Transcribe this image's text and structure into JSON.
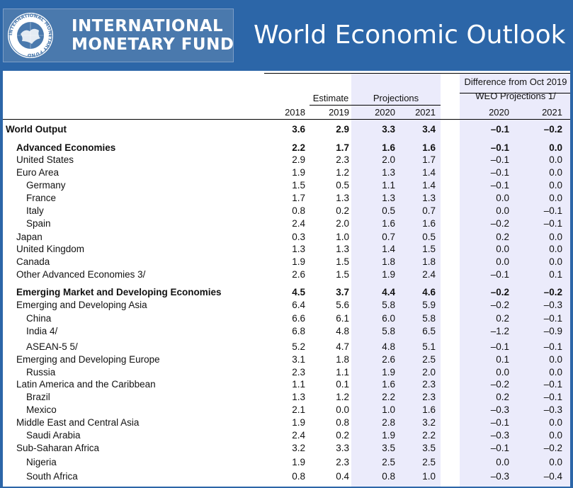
{
  "header": {
    "org_line1": "INTERNATIONAL",
    "org_line2": "MONETARY FUND",
    "title": "World Economic Outlook",
    "seal_text": "INTERNATIONAL MONETARY FUND"
  },
  "table": {
    "group_headers": {
      "estimate": "Estimate",
      "projections": "Projections",
      "difference_line1": "Difference from Oct 2019",
      "difference_line2": "WEO Projections 1/"
    },
    "columns": [
      "2018",
      "2019",
      "2020",
      "2021",
      "2020",
      "2021"
    ],
    "rows": [
      {
        "label": "World Output",
        "level": 0,
        "bold": true,
        "values": [
          "3.6",
          "2.9",
          "3.3",
          "3.4",
          "–0.1",
          "–0.2"
        ]
      },
      {
        "label": "Advanced Economies",
        "level": 1,
        "bold": true,
        "values": [
          "2.2",
          "1.7",
          "1.6",
          "1.6",
          "–0.1",
          "0.0"
        ]
      },
      {
        "label": "United States",
        "level": 1,
        "bold": false,
        "values": [
          "2.9",
          "2.3",
          "2.0",
          "1.7",
          "–0.1",
          "0.0"
        ]
      },
      {
        "label": "Euro Area",
        "level": 1,
        "bold": false,
        "values": [
          "1.9",
          "1.2",
          "1.3",
          "1.4",
          "–0.1",
          "0.0"
        ]
      },
      {
        "label": "Germany",
        "level": 2,
        "bold": false,
        "values": [
          "1.5",
          "0.5",
          "1.1",
          "1.4",
          "–0.1",
          "0.0"
        ]
      },
      {
        "label": "France",
        "level": 2,
        "bold": false,
        "values": [
          "1.7",
          "1.3",
          "1.3",
          "1.3",
          "0.0",
          "0.0"
        ]
      },
      {
        "label": "Italy",
        "level": 2,
        "bold": false,
        "values": [
          "0.8",
          "0.2",
          "0.5",
          "0.7",
          "0.0",
          "–0.1"
        ]
      },
      {
        "label": "Spain",
        "level": 2,
        "bold": false,
        "values": [
          "2.4",
          "2.0",
          "1.6",
          "1.6",
          "–0.2",
          "–0.1"
        ]
      },
      {
        "label": "Japan",
        "level": 1,
        "bold": false,
        "values": [
          "0.3",
          "1.0",
          "0.7",
          "0.5",
          "0.2",
          "0.0"
        ]
      },
      {
        "label": "United Kingdom",
        "level": 1,
        "bold": false,
        "values": [
          "1.3",
          "1.3",
          "1.4",
          "1.5",
          "0.0",
          "0.0"
        ]
      },
      {
        "label": "Canada",
        "level": 1,
        "bold": false,
        "values": [
          "1.9",
          "1.5",
          "1.8",
          "1.8",
          "0.0",
          "0.0"
        ]
      },
      {
        "label": "Other Advanced Economies 3/",
        "level": 1,
        "bold": false,
        "values": [
          "2.6",
          "1.5",
          "1.9",
          "2.4",
          "–0.1",
          "0.1"
        ]
      },
      {
        "label": "Emerging Market and Developing Economies",
        "level": 1,
        "bold": true,
        "values": [
          "4.5",
          "3.7",
          "4.4",
          "4.6",
          "–0.2",
          "–0.2"
        ]
      },
      {
        "label": "Emerging and Developing Asia",
        "level": 1,
        "bold": false,
        "values": [
          "6.4",
          "5.6",
          "5.8",
          "5.9",
          "–0.2",
          "–0.3"
        ]
      },
      {
        "label": "China",
        "level": 2,
        "bold": false,
        "values": [
          "6.6",
          "6.1",
          "6.0",
          "5.8",
          "0.2",
          "–0.1"
        ]
      },
      {
        "label": "India 4/",
        "level": 2,
        "bold": false,
        "values": [
          "6.8",
          "4.8",
          "5.8",
          "6.5",
          "–1.2",
          "–0.9"
        ]
      },
      {
        "label": "ASEAN-5 5/",
        "level": 2,
        "bold": false,
        "values": [
          "5.2",
          "4.7",
          "4.8",
          "5.1",
          "–0.1",
          "–0.1"
        ]
      },
      {
        "label": "Emerging and Developing Europe",
        "level": 1,
        "bold": false,
        "values": [
          "3.1",
          "1.8",
          "2.6",
          "2.5",
          "0.1",
          "0.0"
        ]
      },
      {
        "label": "Russia",
        "level": 2,
        "bold": false,
        "values": [
          "2.3",
          "1.1",
          "1.9",
          "2.0",
          "0.0",
          "0.0"
        ]
      },
      {
        "label": "Latin America and the Caribbean",
        "level": 1,
        "bold": false,
        "values": [
          "1.1",
          "0.1",
          "1.6",
          "2.3",
          "–0.2",
          "–0.1"
        ]
      },
      {
        "label": "Brazil",
        "level": 2,
        "bold": false,
        "values": [
          "1.3",
          "1.2",
          "2.2",
          "2.3",
          "0.2",
          "–0.1"
        ]
      },
      {
        "label": "Mexico",
        "level": 2,
        "bold": false,
        "values": [
          "2.1",
          "0.0",
          "1.0",
          "1.6",
          "–0.3",
          "–0.3"
        ]
      },
      {
        "label": "Middle East and Central Asia",
        "level": 1,
        "bold": false,
        "values": [
          "1.9",
          "0.8",
          "2.8",
          "3.2",
          "–0.1",
          "0.0"
        ]
      },
      {
        "label": "Saudi Arabia",
        "level": 2,
        "bold": false,
        "values": [
          "2.4",
          "0.2",
          "1.9",
          "2.2",
          "–0.3",
          "0.0"
        ]
      },
      {
        "label": "Sub-Saharan Africa",
        "level": 1,
        "bold": false,
        "values": [
          "3.2",
          "3.3",
          "3.5",
          "3.5",
          "–0.1",
          "–0.2"
        ]
      },
      {
        "label": "Nigeria",
        "level": 2,
        "bold": false,
        "values": [
          "1.9",
          "2.3",
          "2.5",
          "2.5",
          "0.0",
          "0.0"
        ]
      },
      {
        "label": "South Africa",
        "level": 2,
        "bold": false,
        "values": [
          "0.8",
          "0.4",
          "0.8",
          "1.0",
          "–0.3",
          "–0.4"
        ]
      }
    ]
  },
  "colors": {
    "brand_blue": "#2c66a8",
    "projection_band": "#ebebfb"
  }
}
